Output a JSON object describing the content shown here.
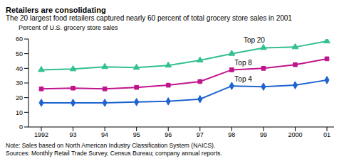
{
  "chart_data": {
    "type": "line",
    "title": "Retailers are consolidating",
    "subtitle": "The 20 largest food retailers captured nearly 60 percent of total grocery store sales in 2001",
    "y_label": "Percent of U.S. grocery store sales",
    "categories": [
      "1992",
      "93",
      "94",
      "95",
      "96",
      "97",
      "98",
      "99",
      "2000",
      "01"
    ],
    "series": [
      {
        "name": "Top 20",
        "color": "#33c08f",
        "marker": "triangle",
        "values": [
          39,
          39.5,
          41,
          40.5,
          42,
          45.5,
          50,
          54,
          54.5,
          58.5
        ]
      },
      {
        "name": "Top 8",
        "color": "#c0148c",
        "marker": "square",
        "values": [
          26,
          26.5,
          26,
          27,
          28.5,
          31,
          39,
          40,
          42.5,
          46.5
        ]
      },
      {
        "name": "Top 4",
        "color": "#1f63d0",
        "marker": "diamond",
        "values": [
          16.5,
          16.5,
          16.5,
          17,
          17.5,
          19,
          28,
          27.5,
          28.5,
          32
        ]
      }
    ],
    "ylim": [
      0,
      60
    ],
    "yticks": [
      0,
      10,
      20,
      30,
      40,
      50,
      60
    ],
    "grid": false,
    "notes": [
      "Note: Sales based on North American Industry Classification System (NAICS).",
      "Sources: Monthly Retail Trade Survey, Census Bureau; company annual reports."
    ]
  }
}
